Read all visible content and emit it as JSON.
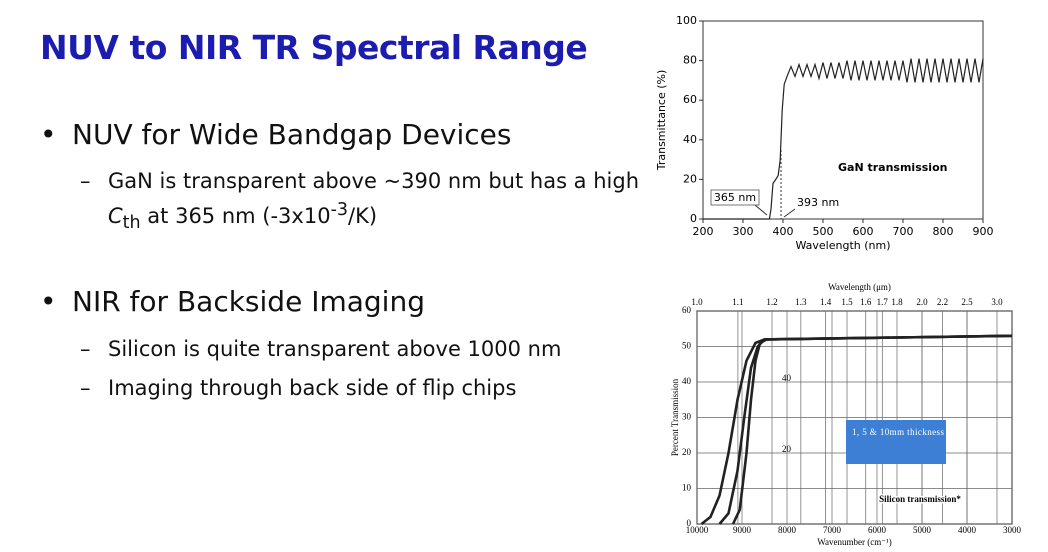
{
  "title": "NUV to NIR TR Spectral Range",
  "bullets": [
    {
      "text": "NUV for Wide Bandgap Devices",
      "sub": [
        [
          "GaN is transparent above ~390 nm but has a high ",
          "C",
          "th",
          " at 365 nm (-3x10",
          "-3",
          "/K)"
        ]
      ]
    },
    {
      "text": "NIR for Backside Imaging",
      "sub": [
        [
          "Silicon is quite transparent above 1000 nm"
        ],
        [
          "Imaging through back side of flip chips"
        ]
      ]
    }
  ],
  "chart_data": [
    {
      "type": "line",
      "xlabel": "Wavelength (nm)",
      "ylabel": "Transmittance (%)",
      "xlim": [
        200,
        900
      ],
      "ylim": [
        0,
        100
      ],
      "xticks": [
        200,
        300,
        400,
        500,
        600,
        700,
        800,
        900
      ],
      "yticks": [
        0,
        20,
        40,
        60,
        80,
        100
      ],
      "annotations": [
        "365 nm",
        "393 nm",
        "GaN transmission"
      ],
      "series": [
        {
          "color": "#222",
          "x": [
            200,
            360,
            366,
            370,
            375,
            382,
            388,
            393,
            398,
            403,
            410,
            420,
            430,
            440,
            450,
            460,
            470,
            480,
            490,
            500,
            510,
            520,
            530,
            540,
            550,
            560,
            570,
            580,
            590,
            600,
            610,
            620,
            630,
            640,
            650,
            660,
            670,
            680,
            690,
            700,
            710,
            720,
            730,
            740,
            750,
            760,
            770,
            780,
            790,
            800,
            810,
            820,
            830,
            840,
            850,
            860,
            870,
            880,
            890,
            900
          ],
          "values": [
            0,
            0,
            0,
            5,
            18,
            20,
            22,
            30,
            55,
            68,
            72,
            77,
            72,
            78,
            72,
            78,
            72,
            78,
            71,
            79,
            71,
            79,
            71,
            79,
            71,
            80,
            70,
            80,
            70,
            80,
            70,
            80,
            70,
            80,
            70,
            80,
            70,
            80,
            70,
            80,
            69,
            81,
            69,
            81,
            69,
            81,
            69,
            81,
            69,
            81,
            69,
            81,
            69,
            81,
            69,
            81,
            69,
            81,
            69,
            81
          ]
        }
      ]
    },
    {
      "type": "line",
      "xlabel": "Wavenumber (cm⁻¹)",
      "x2label": "Wavelength (μm)",
      "ylabel": "Percent Transmission",
      "xlim": [
        10000,
        3000
      ],
      "ylim": [
        0,
        60
      ],
      "xticks": [
        10000,
        9000,
        8000,
        7000,
        6000,
        5000,
        4000,
        3000
      ],
      "yticks": [
        0,
        10,
        20,
        30,
        40,
        50,
        60
      ],
      "x2_scale": "reciprocal",
      "x2ticks": [
        {
          "value": 1,
          "label": "1.0"
        },
        1.1,
        1.2,
        1.3,
        1.4,
        1.5,
        1.6,
        1.7,
        1.8,
        {
          "value": 2,
          "label": "2.0"
        },
        2.2,
        2.5,
        {
          "value": 3,
          "label": "3.0"
        }
      ],
      "annotations": [
        "40",
        "20",
        "1, 5 & 10mm thickness",
        "Silicon transmission*"
      ],
      "series": [
        {
          "color": "#222",
          "x": [
            9900,
            9700,
            9500,
            9300,
            9100,
            8900,
            8700,
            8500,
            3000
          ],
          "values": [
            0,
            2,
            8,
            20,
            35,
            46,
            51,
            52,
            53
          ]
        },
        {
          "color": "#222",
          "x": [
            9500,
            9300,
            9100,
            8950,
            8800,
            8650,
            8500,
            3000
          ],
          "values": [
            0,
            3,
            15,
            30,
            44,
            50,
            52,
            53
          ]
        },
        {
          "color": "#222",
          "x": [
            9200,
            9050,
            8900,
            8800,
            8700,
            8600,
            8450,
            3000
          ],
          "values": [
            0,
            4,
            20,
            35,
            46,
            51,
            52,
            53
          ]
        }
      ]
    }
  ]
}
